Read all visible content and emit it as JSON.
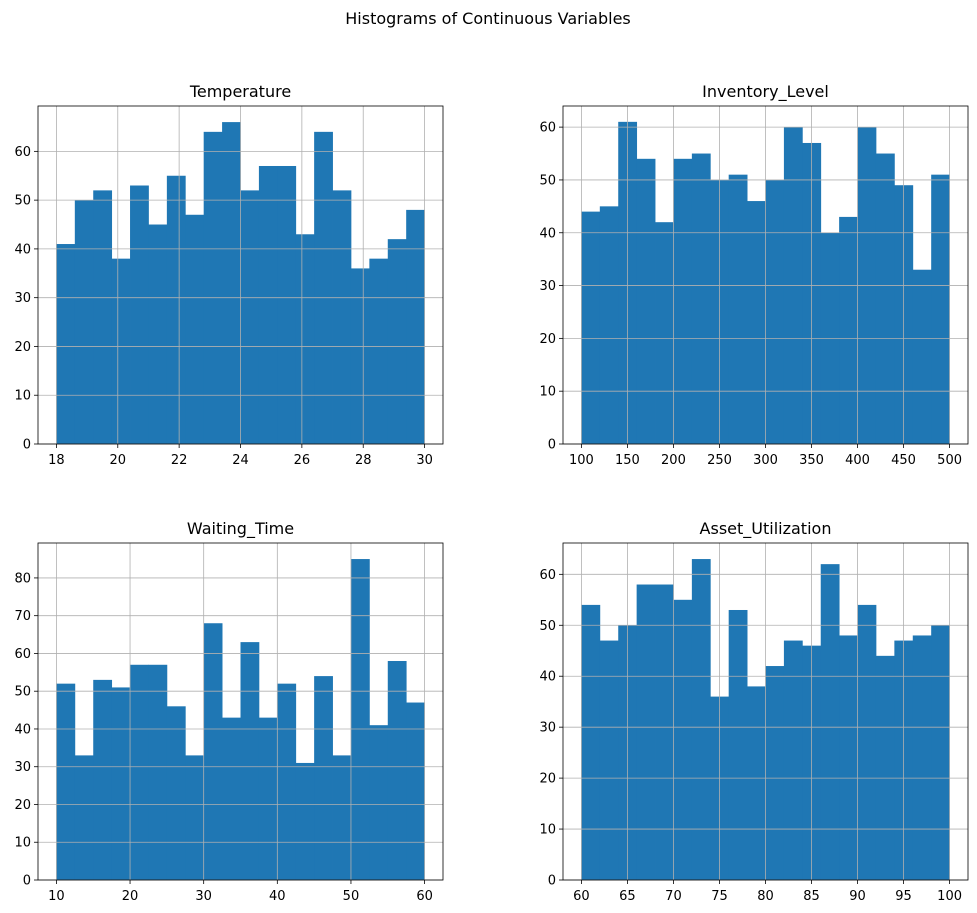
{
  "figure": {
    "title": "Histograms of Continuous Variables"
  },
  "chart_data": [
    {
      "type": "bar",
      "title": "Temperature",
      "xlabel": "",
      "ylabel": "",
      "xlim": [
        17.4,
        30.6
      ],
      "ylim": [
        0,
        69.3
      ],
      "xticks": [
        18,
        20,
        22,
        24,
        26,
        28,
        30
      ],
      "yticks": [
        0,
        10,
        20,
        30,
        40,
        50,
        60
      ],
      "bin_edges": [
        18.0,
        18.6,
        19.2,
        19.8,
        20.4,
        21.0,
        21.6,
        22.2,
        22.8,
        23.4,
        24.0,
        24.6,
        25.2,
        25.8,
        26.4,
        27.0,
        27.6,
        28.2,
        28.8,
        29.4,
        30.0
      ],
      "values": [
        41,
        50,
        52,
        38,
        53,
        45,
        55,
        47,
        64,
        66,
        52,
        57,
        57,
        43,
        64,
        52,
        36,
        38,
        42,
        48
      ],
      "grid": true,
      "color": "#1f77b4"
    },
    {
      "type": "bar",
      "title": "Inventory_Level",
      "xlabel": "",
      "ylabel": "",
      "xlim": [
        80,
        520
      ],
      "ylim": [
        0,
        64
      ],
      "xticks": [
        100,
        150,
        200,
        250,
        300,
        350,
        400,
        450,
        500
      ],
      "yticks": [
        0,
        10,
        20,
        30,
        40,
        50,
        60
      ],
      "bin_edges": [
        100,
        120,
        140,
        160,
        180,
        200,
        220,
        240,
        260,
        280,
        300,
        320,
        340,
        360,
        380,
        400,
        420,
        440,
        460,
        480,
        500
      ],
      "values": [
        44,
        45,
        61,
        54,
        42,
        54,
        55,
        50,
        51,
        46,
        50,
        60,
        57,
        40,
        43,
        60,
        55,
        49,
        33,
        51
      ],
      "grid": true,
      "color": "#1f77b4"
    },
    {
      "type": "bar",
      "title": "Waiting_Time",
      "xlabel": "",
      "ylabel": "",
      "xlim": [
        7.5,
        62.5
      ],
      "ylim": [
        0,
        89.25
      ],
      "xticks": [
        10,
        20,
        30,
        40,
        50,
        60
      ],
      "yticks": [
        0,
        10,
        20,
        30,
        40,
        50,
        60,
        70,
        80
      ],
      "bin_edges": [
        10.0,
        12.5,
        15.0,
        17.5,
        20.0,
        22.5,
        25.0,
        27.5,
        30.0,
        32.5,
        35.0,
        37.5,
        40.0,
        42.5,
        45.0,
        47.5,
        50.0,
        52.5,
        55.0,
        57.5,
        60.0
      ],
      "values": [
        52,
        33,
        53,
        51,
        57,
        57,
        46,
        33,
        68,
        43,
        63,
        43,
        52,
        31,
        54,
        33,
        85,
        41,
        58,
        47
      ],
      "grid": true,
      "color": "#1f77b4"
    },
    {
      "type": "bar",
      "title": "Asset_Utilization",
      "xlabel": "",
      "ylabel": "",
      "xlim": [
        58,
        102
      ],
      "ylim": [
        0,
        66.15
      ],
      "xticks": [
        60,
        65,
        70,
        75,
        80,
        85,
        90,
        95,
        100
      ],
      "yticks": [
        0,
        10,
        20,
        30,
        40,
        50,
        60
      ],
      "bin_edges": [
        60,
        62,
        64,
        66,
        68,
        70,
        72,
        74,
        76,
        78,
        80,
        82,
        84,
        86,
        88,
        90,
        92,
        94,
        96,
        98,
        100
      ],
      "values": [
        54,
        47,
        50,
        58,
        58,
        55,
        63,
        36,
        53,
        38,
        42,
        47,
        46,
        62,
        48,
        54,
        44,
        47,
        48,
        50
      ],
      "grid": true,
      "color": "#1f77b4"
    }
  ]
}
